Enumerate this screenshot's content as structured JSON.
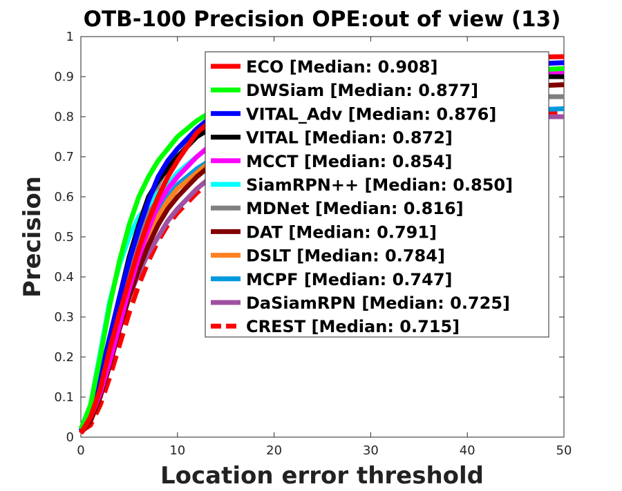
{
  "chart_data": {
    "type": "line",
    "title": "OTB-100 Precision OPE:out of view (13)",
    "xlabel": "Location error threshold",
    "ylabel": "Precision",
    "xlim": [
      0,
      50
    ],
    "ylim": [
      0,
      1
    ],
    "x_ticks": [
      "0",
      "10",
      "20",
      "30",
      "40",
      "50"
    ],
    "y_ticks": [
      "0",
      "0.1",
      "0.2",
      "0.3",
      "0.4",
      "0.5",
      "0.6",
      "0.7",
      "0.8",
      "0.9",
      "1"
    ],
    "grid": false,
    "legend_position": "top-right",
    "x": [
      0,
      1,
      2,
      3,
      4,
      5,
      6,
      7,
      8,
      9,
      10,
      12,
      14,
      16,
      18,
      20,
      25,
      30,
      35,
      40,
      45,
      50
    ],
    "series": [
      {
        "name": "ECO [Median: 0.908]",
        "color": "#ff0000",
        "dash": "solid",
        "values": [
          0.01,
          0.05,
          0.12,
          0.22,
          0.31,
          0.39,
          0.47,
          0.54,
          0.6,
          0.65,
          0.69,
          0.76,
          0.8,
          0.84,
          0.87,
          0.89,
          0.92,
          0.93,
          0.94,
          0.945,
          0.948,
          0.95
        ]
      },
      {
        "name": "DWSiam [Median: 0.877]",
        "color": "#00ff00",
        "dash": "solid",
        "values": [
          0.02,
          0.08,
          0.2,
          0.33,
          0.44,
          0.53,
          0.6,
          0.65,
          0.69,
          0.72,
          0.75,
          0.79,
          0.82,
          0.84,
          0.86,
          0.87,
          0.89,
          0.9,
          0.905,
          0.91,
          0.915,
          0.92
        ]
      },
      {
        "name": "VITAL_Adv [Median: 0.876]",
        "color": "#0000ff",
        "dash": "solid",
        "values": [
          0.015,
          0.06,
          0.15,
          0.25,
          0.35,
          0.44,
          0.52,
          0.59,
          0.65,
          0.69,
          0.72,
          0.77,
          0.81,
          0.84,
          0.86,
          0.88,
          0.9,
          0.91,
          0.92,
          0.925,
          0.93,
          0.935
        ]
      },
      {
        "name": "VITAL [Median: 0.872]",
        "color": "#000000",
        "dash": "solid",
        "values": [
          0.015,
          0.06,
          0.15,
          0.25,
          0.35,
          0.45,
          0.53,
          0.6,
          0.64,
          0.67,
          0.7,
          0.75,
          0.78,
          0.81,
          0.83,
          0.85,
          0.87,
          0.88,
          0.89,
          0.895,
          0.9,
          0.9
        ]
      },
      {
        "name": "MCCT [Median: 0.854]",
        "color": "#ff00ff",
        "dash": "solid",
        "values": [
          0.01,
          0.05,
          0.11,
          0.19,
          0.28,
          0.37,
          0.45,
          0.52,
          0.58,
          0.62,
          0.65,
          0.7,
          0.74,
          0.78,
          0.81,
          0.83,
          0.86,
          0.88,
          0.89,
          0.9,
          0.905,
          0.91
        ]
      },
      {
        "name": "SiamRPN++ [Median: 0.850]",
        "color": "#00ffff",
        "dash": "solid",
        "values": [
          0.02,
          0.08,
          0.21,
          0.34,
          0.43,
          0.5,
          0.55,
          0.58,
          0.61,
          0.63,
          0.66,
          0.7,
          0.74,
          0.78,
          0.81,
          0.83,
          0.87,
          0.89,
          0.9,
          0.91,
          0.915,
          0.92
        ]
      },
      {
        "name": "MDNet [Median: 0.816]",
        "color": "#808080",
        "dash": "solid",
        "values": [
          0.01,
          0.05,
          0.13,
          0.23,
          0.33,
          0.42,
          0.5,
          0.57,
          0.63,
          0.68,
          0.72,
          0.76,
          0.78,
          0.8,
          0.81,
          0.82,
          0.83,
          0.84,
          0.84,
          0.845,
          0.85,
          0.85
        ]
      },
      {
        "name": "DAT [Median: 0.791]",
        "color": "#800000",
        "dash": "solid",
        "values": [
          0.01,
          0.04,
          0.1,
          0.18,
          0.27,
          0.35,
          0.42,
          0.48,
          0.53,
          0.57,
          0.6,
          0.65,
          0.69,
          0.72,
          0.75,
          0.77,
          0.81,
          0.84,
          0.86,
          0.87,
          0.875,
          0.88
        ]
      },
      {
        "name": "DSLT [Median: 0.784]",
        "color": "#ff8020",
        "dash": "solid",
        "values": [
          0.01,
          0.05,
          0.13,
          0.22,
          0.31,
          0.39,
          0.45,
          0.5,
          0.55,
          0.59,
          0.62,
          0.66,
          0.7,
          0.73,
          0.76,
          0.78,
          0.82,
          0.84,
          0.86,
          0.87,
          0.875,
          0.88
        ]
      },
      {
        "name": "MCPF [Median: 0.747]",
        "color": "#0099dd",
        "dash": "solid",
        "values": [
          0.015,
          0.06,
          0.15,
          0.25,
          0.34,
          0.41,
          0.47,
          0.52,
          0.56,
          0.6,
          0.63,
          0.67,
          0.7,
          0.73,
          0.75,
          0.76,
          0.78,
          0.8,
          0.81,
          0.815,
          0.815,
          0.82
        ]
      },
      {
        "name": "DaSiamRPN [Median: 0.725]",
        "color": "#a050a0",
        "dash": "solid",
        "values": [
          0.01,
          0.05,
          0.12,
          0.2,
          0.28,
          0.35,
          0.41,
          0.46,
          0.5,
          0.54,
          0.57,
          0.62,
          0.66,
          0.69,
          0.72,
          0.74,
          0.77,
          0.78,
          0.79,
          0.795,
          0.8,
          0.8
        ]
      },
      {
        "name": "CREST [Median: 0.715]",
        "color": "#ff0000",
        "dash": "dashed",
        "values": [
          0.015,
          0.03,
          0.08,
          0.15,
          0.23,
          0.31,
          0.38,
          0.44,
          0.49,
          0.53,
          0.56,
          0.61,
          0.65,
          0.69,
          0.72,
          0.74,
          0.77,
          0.79,
          0.8,
          0.805,
          0.81,
          0.81
        ]
      }
    ]
  }
}
